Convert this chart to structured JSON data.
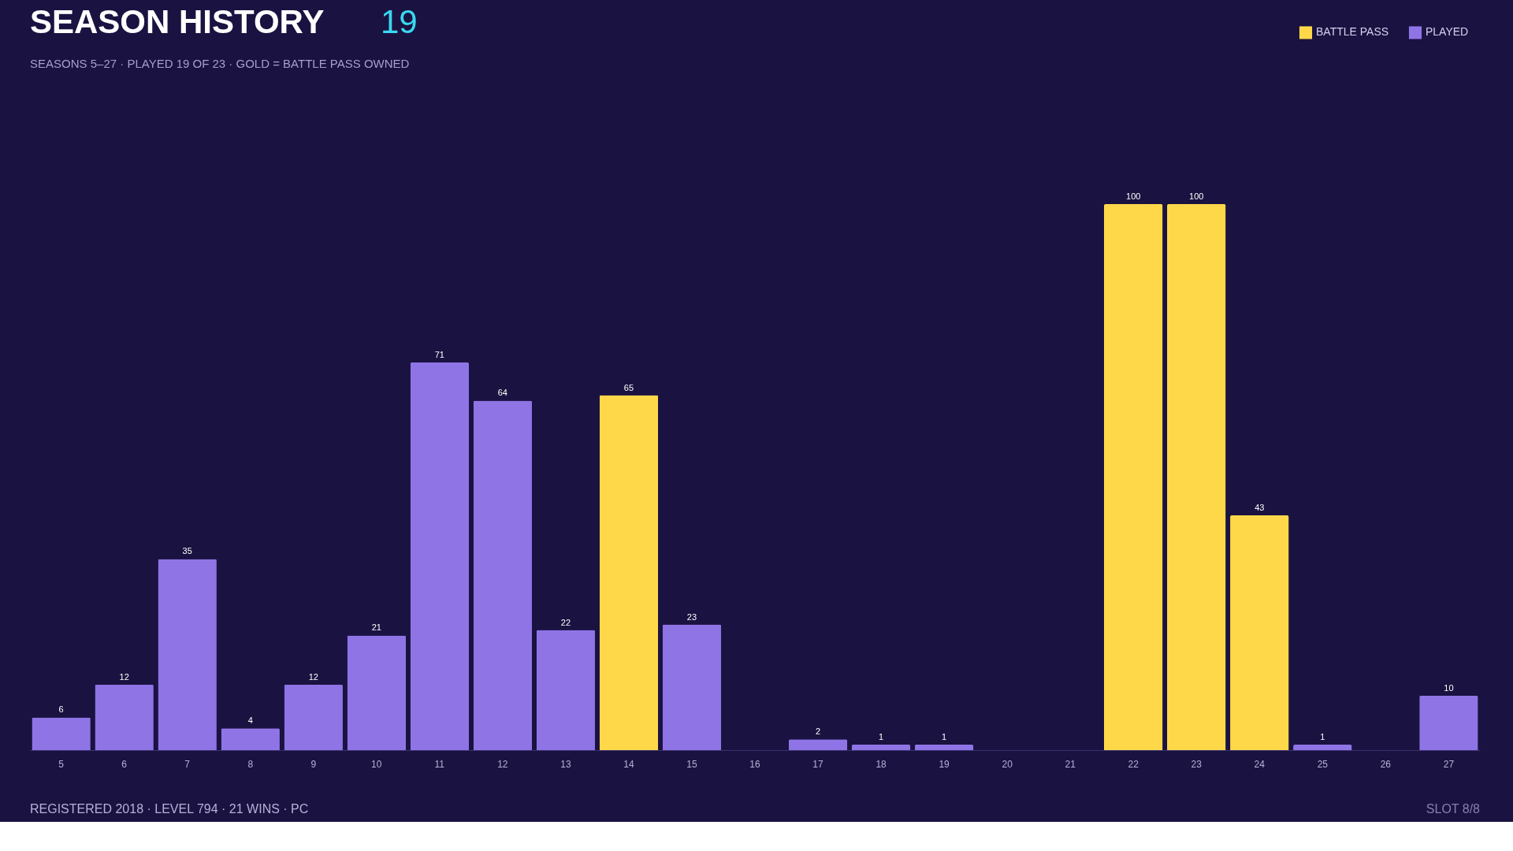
{
  "chart_data": {
    "type": "bar",
    "title": "SEASON HISTORY",
    "subtitle": "SEASONS 5–27 · PLAYED 19 OF 23 · GOLD = BATTLE PASS OWNED",
    "annotations": [
      "19",
      "REGISTERED 2018 · LEVEL 794 · 21 WINS · PC",
      "SLOT 8/8"
    ],
    "categories": [
      "5",
      "6",
      "7",
      "8",
      "9",
      "10",
      "11",
      "12",
      "13",
      "14",
      "15",
      "16",
      "17",
      "18",
      "19",
      "20",
      "21",
      "22",
      "23",
      "24",
      "25",
      "26",
      "27"
    ],
    "stacked": true,
    "data_labels": true,
    "legend": "top right",
    "grid": false,
    "series": [
      {
        "name": "BATTLE PASS",
        "color": "#ffd84a",
        "values": [
          null,
          null,
          null,
          null,
          null,
          null,
          null,
          null,
          null,
          65,
          null,
          null,
          null,
          null,
          null,
          null,
          null,
          100,
          100,
          43,
          null,
          null,
          null
        ]
      },
      {
        "name": "PLAYED",
        "color": "#8f74e6",
        "values": [
          6,
          12,
          35,
          4,
          12,
          21,
          71,
          64,
          22,
          null,
          23,
          null,
          2,
          1,
          1,
          null,
          null,
          null,
          null,
          null,
          1,
          null,
          10
        ]
      }
    ]
  }
}
